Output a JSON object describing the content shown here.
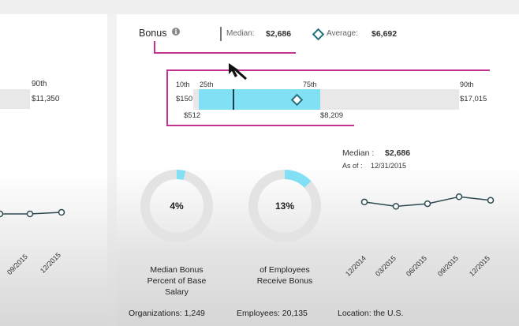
{
  "left_panel": {
    "pct90_label": "90th",
    "pct90_value": "$11,350",
    "x_ticks": [
      "09/2015",
      "12/2015"
    ]
  },
  "bonus": {
    "title": "Bonus",
    "info_icon": "info-icon",
    "median_label": "Median:",
    "median_value": "$2,686",
    "average_label": "Average:",
    "average_value": "$6,692",
    "average_icon": "diamond-icon",
    "accent_color": "#c2338f",
    "range_bar": {
      "p10_label": "10th",
      "p10_value": "$150",
      "p25_label": "25th",
      "p25_value": "$512",
      "p75_label": "75th",
      "p75_value": "$8,209",
      "p90_label": "90th",
      "p90_value": "$17,015",
      "median": 2686,
      "average": 6692,
      "p10": 150,
      "p25": 512,
      "p75": 8209,
      "p90": 17015,
      "fill_color": "#82e0f5"
    },
    "donuts": [
      {
        "value_label": "4%",
        "percent": 4,
        "caption": "Median Bonus Percent of Base Salary"
      },
      {
        "value_label": "13%",
        "percent": 13,
        "caption": "of Employees Receive Bonus"
      }
    ],
    "trend": {
      "median_label": "Median :",
      "median_value": "$2,686",
      "asof_label": "As of :",
      "asof_value": "12/31/2015",
      "x_ticks": [
        "12/2014",
        "03/2015",
        "06/2015",
        "09/2015",
        "12/2015"
      ],
      "relative_values": [
        0.55,
        0.3,
        0.45,
        0.85,
        0.65
      ]
    },
    "footer": {
      "organizations": "Organizations: 1,249",
      "employees": "Employees: 20,135",
      "location": "Location: the U.S."
    }
  }
}
